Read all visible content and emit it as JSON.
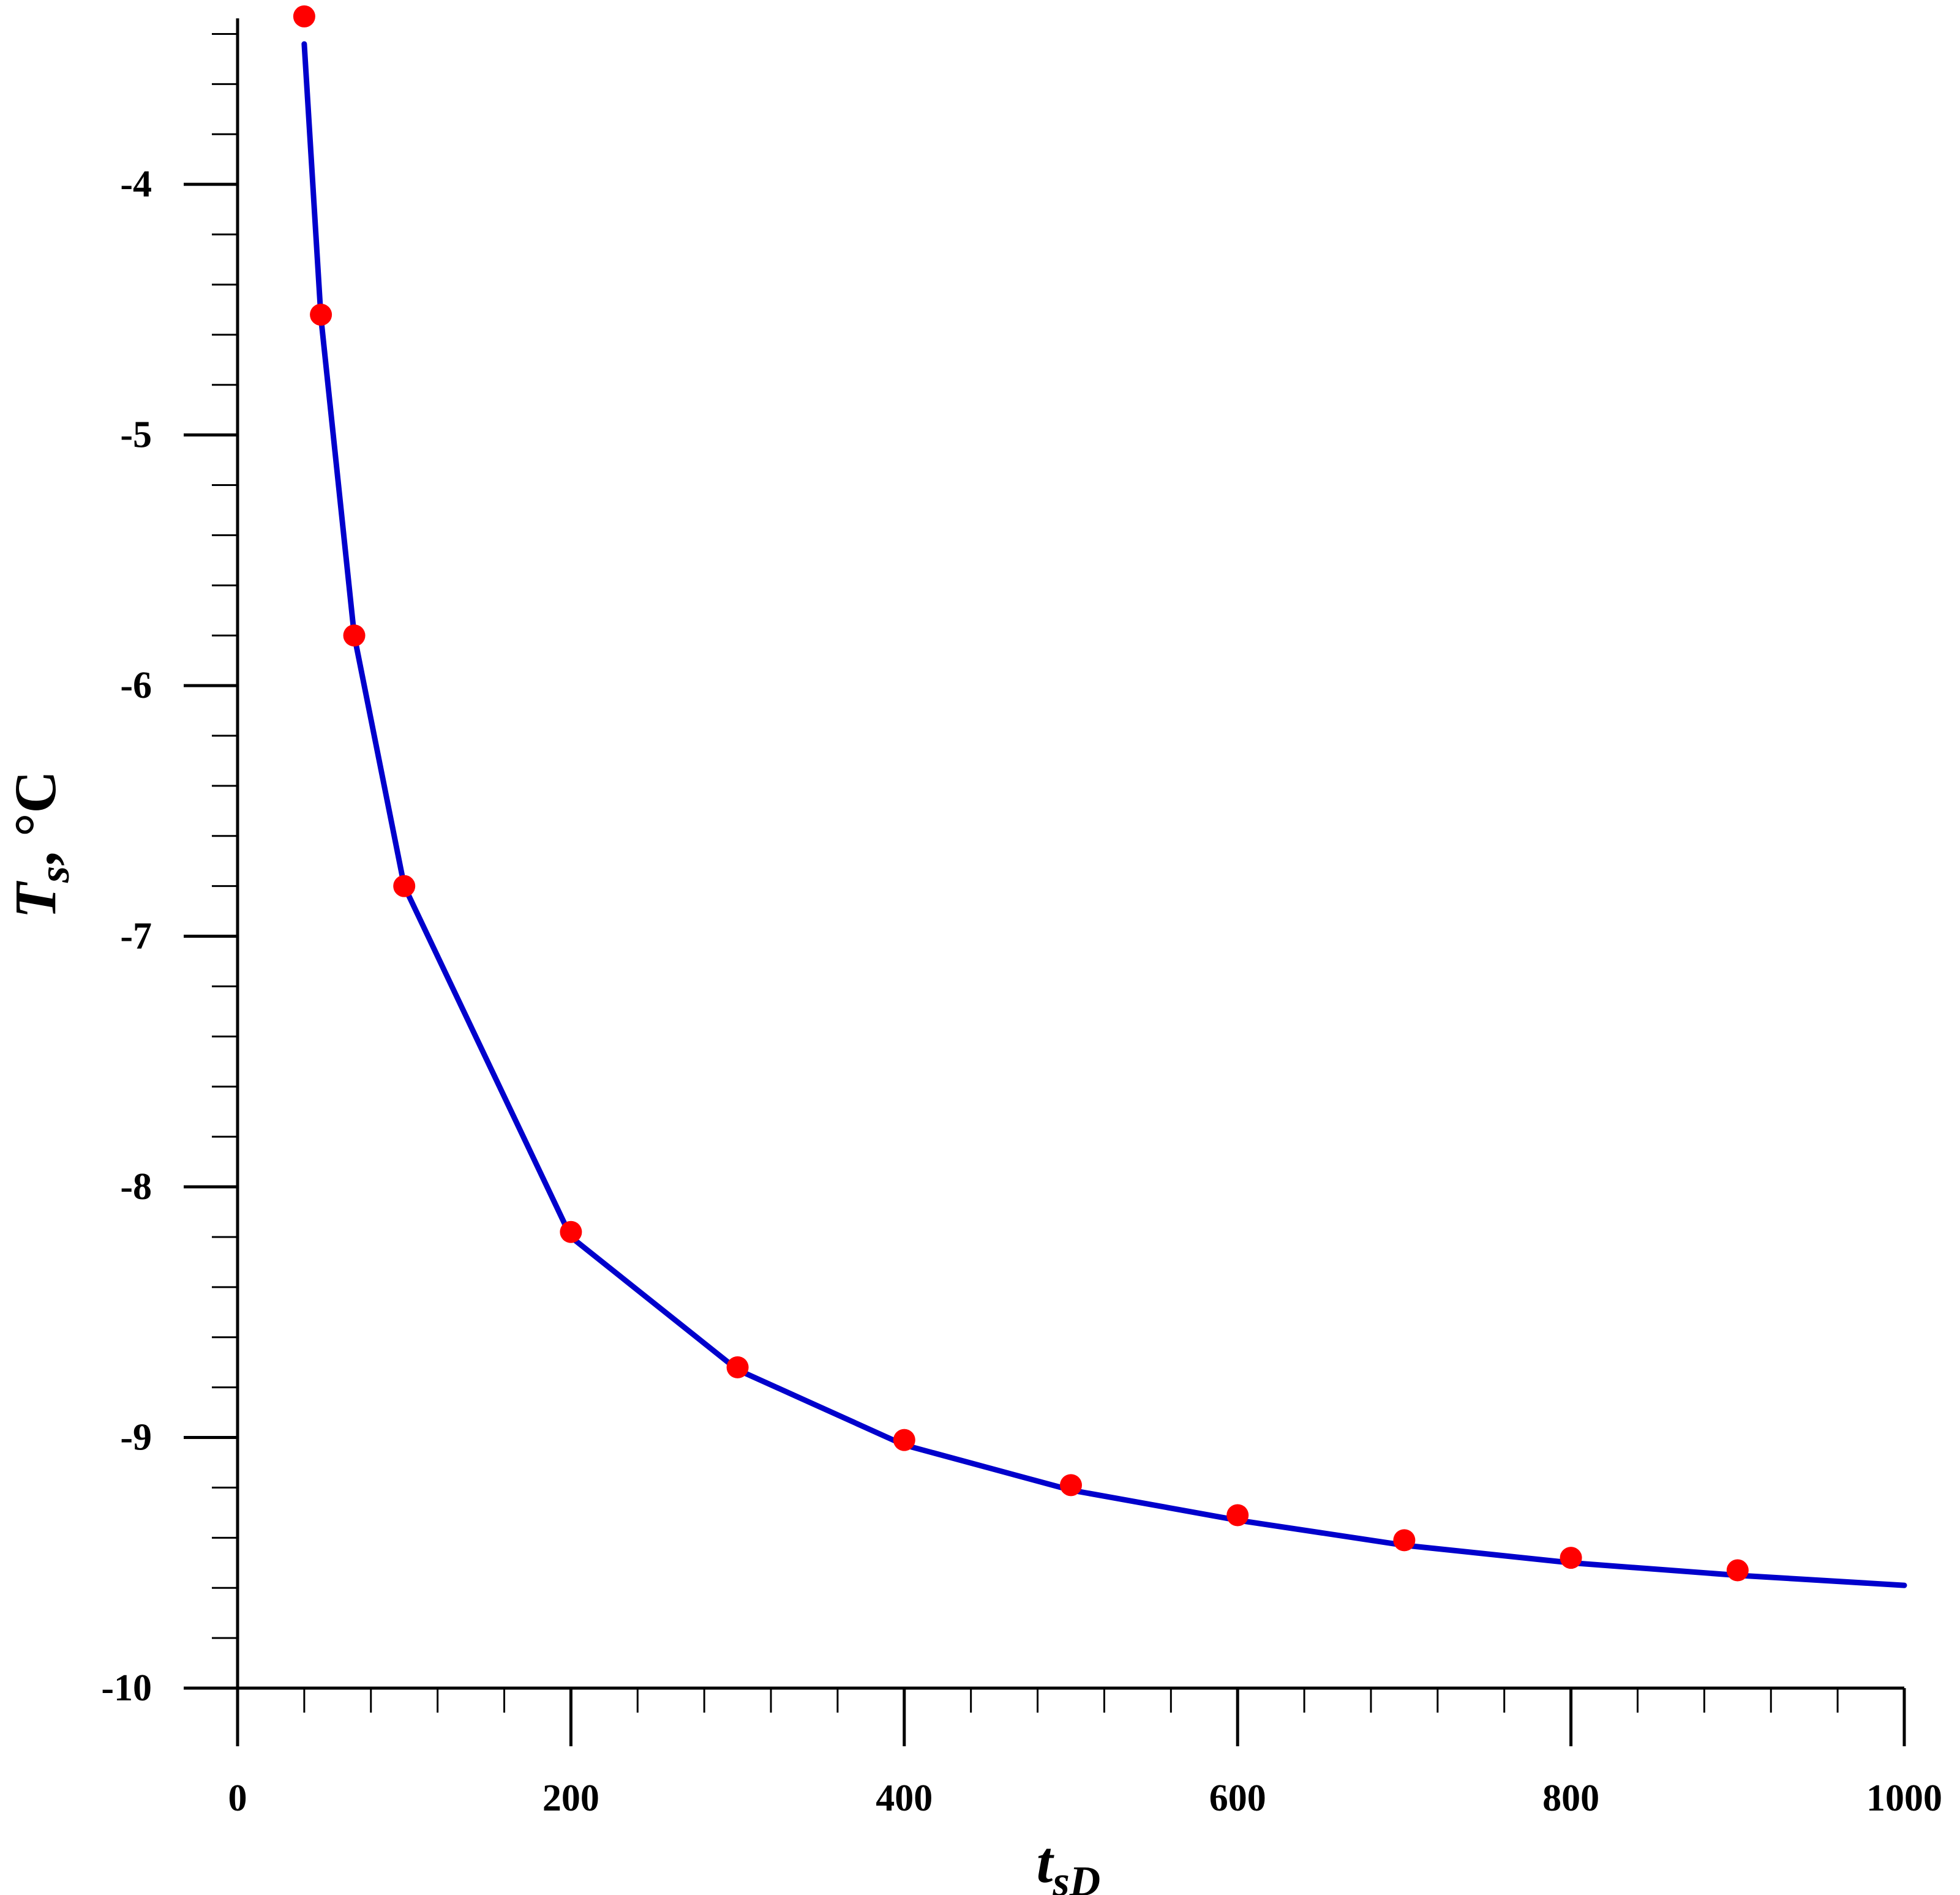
{
  "chart_data": {
    "type": "line",
    "x_axis": {
      "label_main": "t",
      "label_sub": "sD",
      "range": [
        0,
        1000
      ],
      "major_ticks": [
        0,
        200,
        400,
        600,
        800,
        1000
      ],
      "tick_labels": [
        "0",
        "200",
        "400",
        "600",
        "800",
        "1000"
      ],
      "minor_step": 40
    },
    "y_axis": {
      "label_main": "T",
      "label_sub": "s",
      "label_unit": ", °C",
      "range": [
        -10,
        -3.35
      ],
      "major_ticks": [
        -10,
        -9,
        -8,
        -7,
        -6,
        -5,
        -4
      ],
      "tick_labels": [
        "-10",
        "-9",
        "-8",
        "-7",
        "-6",
        "-5",
        "-4"
      ],
      "minor_step": 0.2
    },
    "grid": false,
    "series": [
      {
        "kind": "line",
        "color": "#0000cc",
        "x": [
          40,
          50,
          70,
          100,
          200,
          300,
          400,
          500,
          600,
          700,
          800,
          900,
          1000
        ],
        "y": [
          -3.44,
          -4.53,
          -5.8,
          -6.8,
          -8.2,
          -8.73,
          -9.03,
          -9.21,
          -9.33,
          -9.43,
          -9.5,
          -9.55,
          -9.59
        ]
      },
      {
        "kind": "markers",
        "color": "#ff0000",
        "x": [
          40,
          50,
          70,
          100,
          200,
          300,
          400,
          500,
          600,
          700,
          800,
          900
        ],
        "y": [
          -3.33,
          -4.52,
          -5.8,
          -6.8,
          -8.18,
          -8.72,
          -9.01,
          -9.19,
          -9.31,
          -9.41,
          -9.48,
          -9.53
        ]
      }
    ]
  }
}
